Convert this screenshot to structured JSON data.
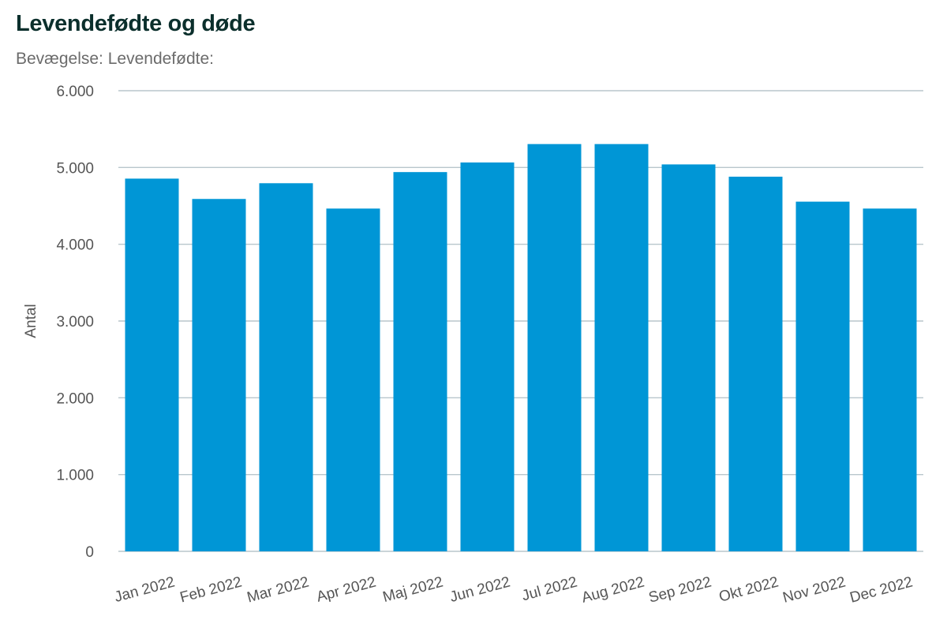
{
  "title": "Levendefødte og døde",
  "subtitle": "Bevægelse: Levendefødte:",
  "colors": {
    "bar": "#0096d6",
    "grid": "#b9c6cc",
    "title": "#0b2f2c",
    "text": "#555555"
  },
  "chart_data": {
    "type": "bar",
    "title": "Levendefødte og døde",
    "subtitle": "Bevægelse: Levendefødte:",
    "xlabel": "",
    "ylabel": "Antal",
    "ylim": [
      0,
      6000
    ],
    "yticks": [
      0,
      1000,
      2000,
      3000,
      4000,
      5000,
      6000
    ],
    "ytick_labels": [
      "0",
      "1.000",
      "2.000",
      "3.000",
      "4.000",
      "5.000",
      "6.000"
    ],
    "grid": true,
    "categories": [
      "Jan 2022",
      "Feb 2022",
      "Mar 2022",
      "Apr 2022",
      "Maj 2022",
      "Jun 2022",
      "Jul 2022",
      "Aug 2022",
      "Sep 2022",
      "Okt 2022",
      "Nov 2022",
      "Dec 2022"
    ],
    "values": [
      4855,
      4590,
      4795,
      4465,
      4940,
      5065,
      5305,
      5305,
      5040,
      4880,
      4555,
      4465
    ]
  }
}
